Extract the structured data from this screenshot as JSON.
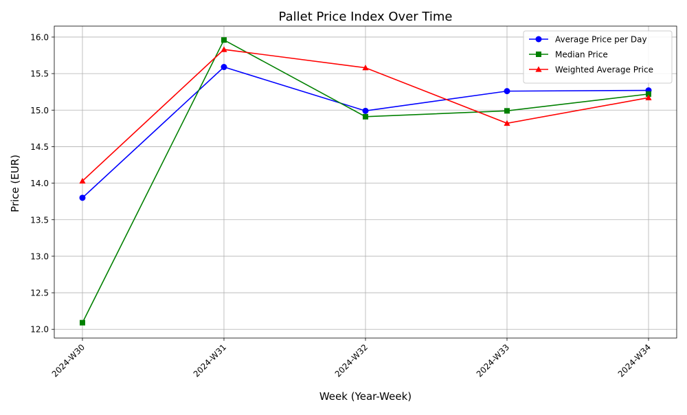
{
  "chart_data": {
    "type": "line",
    "title": "Pallet Price Index Over Time",
    "xlabel": "Week (Year-Week)",
    "ylabel": "Price (EUR)",
    "categories": [
      "2024-W30",
      "2024-W31",
      "2024-W32",
      "2024-W33",
      "2024-W34"
    ],
    "ylim": [
      11.88,
      16.15
    ],
    "yticks": [
      12.0,
      12.5,
      13.0,
      13.5,
      14.0,
      14.5,
      15.0,
      15.5,
      16.0
    ],
    "grid": true,
    "legend_position": "top-right",
    "series": [
      {
        "name": "Average Price per Day",
        "color": "#0000ff",
        "marker": "circle",
        "values": [
          13.8,
          15.59,
          14.99,
          15.26,
          15.27
        ]
      },
      {
        "name": "Median Price",
        "color": "#008000",
        "marker": "square",
        "values": [
          12.09,
          15.96,
          14.91,
          14.99,
          15.22
        ]
      },
      {
        "name": "Weighted Average Price",
        "color": "#ff0000",
        "marker": "triangle",
        "values": [
          14.03,
          15.83,
          15.58,
          14.82,
          15.17
        ]
      }
    ]
  }
}
